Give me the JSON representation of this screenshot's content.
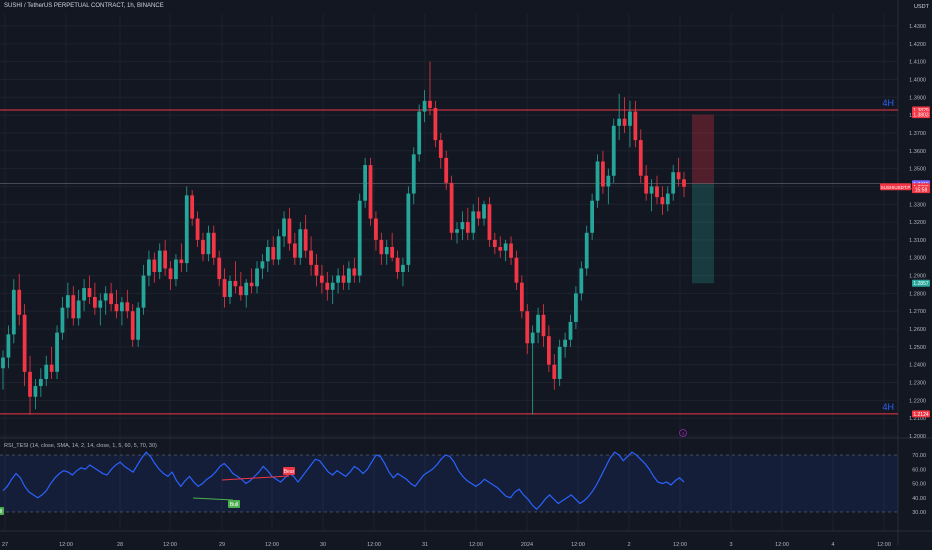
{
  "header": {
    "symbol_title": "SUSHI / TetherUS PERPETUAL CONTRACT, 1h, BINANCE",
    "currency": "USDT"
  },
  "colors": {
    "bg": "#131722",
    "up": "#26a69a",
    "down": "#f23645",
    "level": "#f23645",
    "rsi": "#2962ff",
    "accent": "#2962ff"
  },
  "chart_data": [
    {
      "type": "candlestick",
      "title": "SUSHI / TetherUS PERPETUAL CONTRACT, 1h, BINANCE",
      "ylim": [
        1.2,
        1.44
      ],
      "y_ticks": [
        "1.4300",
        "1.4200",
        "1.4100",
        "1.4000",
        "1.3900",
        "1.3800",
        "1.3700",
        "1.3600",
        "1.3500",
        "1.3400",
        "1.3300",
        "1.3200",
        "1.3100",
        "1.3000",
        "1.2900",
        "1.2800",
        "1.2700",
        "1.2600",
        "1.2500",
        "1.2400",
        "1.2300",
        "1.2200",
        "1.2100",
        "1.2000"
      ],
      "x_ticks": [
        "27",
        "12:00",
        "28",
        "12:00",
        "29",
        "12:00",
        "30",
        "12:00",
        "31",
        "12:00",
        "2024",
        "12:00",
        "2",
        "12:00",
        "3",
        "12:00",
        "4",
        "12:00"
      ],
      "ohlc": [
        [
          1.238,
          1.248,
          1.226,
          1.244
        ],
        [
          1.244,
          1.262,
          1.238,
          1.257
        ],
        [
          1.257,
          1.288,
          1.252,
          1.282
        ],
        [
          1.282,
          1.291,
          1.262,
          1.268
        ],
        [
          1.268,
          1.274,
          1.228,
          1.236
        ],
        [
          1.236,
          1.245,
          1.212,
          1.222
        ],
        [
          1.222,
          1.232,
          1.215,
          1.228
        ],
        [
          1.228,
          1.238,
          1.222,
          1.232
        ],
        [
          1.232,
          1.245,
          1.228,
          1.24
        ],
        [
          1.24,
          1.25,
          1.232,
          1.236
        ],
        [
          1.236,
          1.262,
          1.232,
          1.258
        ],
        [
          1.258,
          1.278,
          1.254,
          1.272
        ],
        [
          1.272,
          1.286,
          1.266,
          1.279
        ],
        [
          1.279,
          1.284,
          1.262,
          1.266
        ],
        [
          1.266,
          1.282,
          1.262,
          1.276
        ],
        [
          1.276,
          1.288,
          1.27,
          1.283
        ],
        [
          1.283,
          1.29,
          1.274,
          1.278
        ],
        [
          1.278,
          1.286,
          1.268,
          1.272
        ],
        [
          1.272,
          1.28,
          1.262,
          1.276
        ],
        [
          1.276,
          1.284,
          1.268,
          1.28
        ],
        [
          1.28,
          1.286,
          1.27,
          1.274
        ],
        [
          1.274,
          1.282,
          1.266,
          1.27
        ],
        [
          1.27,
          1.278,
          1.262,
          1.275
        ],
        [
          1.275,
          1.282,
          1.266,
          1.27
        ],
        [
          1.27,
          1.274,
          1.25,
          1.254
        ],
        [
          1.254,
          1.275,
          1.25,
          1.272
        ],
        [
          1.272,
          1.296,
          1.268,
          1.29
        ],
        [
          1.29,
          1.304,
          1.284,
          1.299
        ],
        [
          1.299,
          1.303,
          1.286,
          1.292
        ],
        [
          1.292,
          1.308,
          1.288,
          1.304
        ],
        [
          1.304,
          1.31,
          1.29,
          1.294
        ],
        [
          1.294,
          1.298,
          1.282,
          1.288
        ],
        [
          1.288,
          1.302,
          1.284,
          1.299
        ],
        [
          1.299,
          1.308,
          1.292,
          1.297
        ],
        [
          1.297,
          1.34,
          1.292,
          1.335
        ],
        [
          1.335,
          1.338,
          1.318,
          1.322
        ],
        [
          1.322,
          1.326,
          1.306,
          1.31
        ],
        [
          1.31,
          1.314,
          1.298,
          1.302
        ],
        [
          1.302,
          1.318,
          1.298,
          1.314
        ],
        [
          1.314,
          1.318,
          1.296,
          1.3
        ],
        [
          1.3,
          1.304,
          1.284,
          1.288
        ],
        [
          1.288,
          1.294,
          1.272,
          1.278
        ],
        [
          1.278,
          1.29,
          1.274,
          1.287
        ],
        [
          1.287,
          1.298,
          1.28,
          1.284
        ],
        [
          1.284,
          1.292,
          1.276,
          1.279
        ],
        [
          1.279,
          1.288,
          1.272,
          1.286
        ],
        [
          1.286,
          1.294,
          1.28,
          1.284
        ],
        [
          1.284,
          1.298,
          1.28,
          1.294
        ],
        [
          1.294,
          1.302,
          1.288,
          1.298
        ],
        [
          1.298,
          1.31,
          1.292,
          1.306
        ],
        [
          1.306,
          1.312,
          1.296,
          1.299
        ],
        [
          1.299,
          1.316,
          1.296,
          1.312
        ],
        [
          1.312,
          1.326,
          1.306,
          1.322
        ],
        [
          1.322,
          1.328,
          1.304,
          1.308
        ],
        [
          1.308,
          1.314,
          1.296,
          1.3
        ],
        [
          1.3,
          1.32,
          1.296,
          1.316
        ],
        [
          1.316,
          1.324,
          1.3,
          1.304
        ],
        [
          1.304,
          1.312,
          1.29,
          1.296
        ],
        [
          1.296,
          1.302,
          1.284,
          1.29
        ],
        [
          1.29,
          1.296,
          1.28,
          1.286
        ],
        [
          1.286,
          1.292,
          1.276,
          1.282
        ],
        [
          1.282,
          1.29,
          1.274,
          1.286
        ],
        [
          1.286,
          1.294,
          1.28,
          1.29
        ],
        [
          1.29,
          1.296,
          1.282,
          1.286
        ],
        [
          1.286,
          1.298,
          1.282,
          1.294
        ],
        [
          1.294,
          1.3,
          1.286,
          1.29
        ],
        [
          1.29,
          1.336,
          1.286,
          1.332
        ],
        [
          1.332,
          1.356,
          1.328,
          1.352
        ],
        [
          1.352,
          1.356,
          1.318,
          1.322
        ],
        [
          1.322,
          1.326,
          1.304,
          1.31
        ],
        [
          1.31,
          1.314,
          1.296,
          1.302
        ],
        [
          1.302,
          1.31,
          1.296,
          1.306
        ],
        [
          1.306,
          1.314,
          1.298,
          1.3
        ],
        [
          1.3,
          1.304,
          1.288,
          1.292
        ],
        [
          1.292,
          1.3,
          1.284,
          1.296
        ],
        [
          1.296,
          1.34,
          1.292,
          1.336
        ],
        [
          1.336,
          1.362,
          1.33,
          1.358
        ],
        [
          1.358,
          1.386,
          1.354,
          1.382
        ],
        [
          1.382,
          1.394,
          1.376,
          1.388
        ],
        [
          1.388,
          1.41,
          1.38,
          1.384
        ],
        [
          1.384,
          1.388,
          1.362,
          1.366
        ],
        [
          1.366,
          1.37,
          1.35,
          1.356
        ],
        [
          1.356,
          1.36,
          1.338,
          1.342
        ],
        [
          1.342,
          1.346,
          1.31,
          1.314
        ],
        [
          1.314,
          1.32,
          1.308,
          1.316
        ],
        [
          1.316,
          1.326,
          1.31,
          1.32
        ],
        [
          1.32,
          1.328,
          1.31,
          1.314
        ],
        [
          1.314,
          1.33,
          1.31,
          1.326
        ],
        [
          1.326,
          1.334,
          1.318,
          1.322
        ],
        [
          1.322,
          1.332,
          1.318,
          1.33
        ],
        [
          1.33,
          1.334,
          1.306,
          1.31
        ],
        [
          1.31,
          1.314,
          1.302,
          1.306
        ],
        [
          1.306,
          1.312,
          1.3,
          1.304
        ],
        [
          1.304,
          1.31,
          1.298,
          1.308
        ],
        [
          1.308,
          1.312,
          1.296,
          1.3
        ],
        [
          1.3,
          1.304,
          1.282,
          1.286
        ],
        [
          1.286,
          1.29,
          1.266,
          1.27
        ],
        [
          1.27,
          1.274,
          1.246,
          1.252
        ],
        [
          1.252,
          1.262,
          1.212,
          1.258
        ],
        [
          1.258,
          1.272,
          1.252,
          1.268
        ],
        [
          1.268,
          1.274,
          1.25,
          1.256
        ],
        [
          1.256,
          1.262,
          1.236,
          1.24
        ],
        [
          1.24,
          1.246,
          1.226,
          1.232
        ],
        [
          1.232,
          1.254,
          1.228,
          1.25
        ],
        [
          1.25,
          1.258,
          1.244,
          1.254
        ],
        [
          1.254,
          1.268,
          1.25,
          1.264
        ],
        [
          1.264,
          1.284,
          1.26,
          1.28
        ],
        [
          1.28,
          1.298,
          1.276,
          1.294
        ],
        [
          1.294,
          1.318,
          1.29,
          1.314
        ],
        [
          1.314,
          1.336,
          1.31,
          1.332
        ],
        [
          1.332,
          1.358,
          1.328,
          1.354
        ],
        [
          1.354,
          1.36,
          1.336,
          1.34
        ],
        [
          1.34,
          1.35,
          1.33,
          1.346
        ],
        [
          1.346,
          1.378,
          1.342,
          1.374
        ],
        [
          1.374,
          1.392,
          1.366,
          1.378
        ],
        [
          1.378,
          1.39,
          1.37,
          1.374
        ],
        [
          1.374,
          1.388,
          1.362,
          1.382
        ],
        [
          1.382,
          1.388,
          1.362,
          1.366
        ],
        [
          1.366,
          1.372,
          1.342,
          1.346
        ],
        [
          1.346,
          1.352,
          1.332,
          1.336
        ],
        [
          1.336,
          1.344,
          1.326,
          1.34
        ],
        [
          1.34,
          1.346,
          1.33,
          1.334
        ],
        [
          1.334,
          1.34,
          1.324,
          1.33
        ],
        [
          1.33,
          1.34,
          1.326,
          1.336
        ],
        [
          1.336,
          1.352,
          1.332,
          1.348
        ],
        [
          1.348,
          1.356,
          1.34,
          1.344
        ],
        [
          1.344,
          1.348,
          1.334,
          1.3398
        ]
      ],
      "levels": [
        {
          "label": "4H",
          "price": 1.3829,
          "color": "#f23645"
        },
        {
          "label": "4H",
          "price": 1.2124,
          "color": "#f23645"
        }
      ],
      "price_labels": [
        {
          "text": "1.3829",
          "price": 1.3829,
          "color": "#f23645"
        },
        {
          "text": "1.3803",
          "price": 1.3803,
          "color": "#f23645"
        },
        {
          "text": "1.3415",
          "price": 1.3415,
          "color": "#7b61ff"
        },
        {
          "text": "1.3398",
          "price": 1.3398,
          "color": "#f23645"
        },
        {
          "text": "15:58",
          "price": 1.3382,
          "color": "#f23645"
        },
        {
          "text": "1.2857",
          "price": 1.2857,
          "color": "#26a69a"
        },
        {
          "text": "1.2124",
          "price": 1.2124,
          "color": "#f23645"
        }
      ],
      "symbol_tag": {
        "text": "SUSHIUSDT.P",
        "price": 1.3398
      },
      "position_box": {
        "entry": 1.3415,
        "stop": 1.3803,
        "target": 1.2857
      },
      "events": [
        {
          "label": "4",
          "price": 1.1995
        }
      ]
    },
    {
      "type": "line",
      "title": "RSI_TESI (14, close, SMA, 14, 2, 14, close, 1, 5, 60, 5, 70, 30)",
      "ylim": [
        28,
        76
      ],
      "y_ticks": [
        "70.00",
        "60.00",
        "50.00",
        "40.00",
        "30.00"
      ],
      "series": [
        {
          "name": "",
          "values": [
            45,
            48,
            53,
            57,
            54,
            48,
            44,
            42,
            40,
            42,
            45,
            50,
            54,
            57,
            59,
            58,
            56,
            59,
            61,
            60,
            63,
            61,
            59,
            57,
            56,
            60,
            63,
            65,
            62,
            60,
            58,
            63,
            68,
            72,
            69,
            64,
            60,
            57,
            55,
            58,
            52,
            48,
            52,
            55,
            51,
            48,
            50,
            53,
            55,
            58,
            62,
            64,
            61,
            57,
            55,
            53,
            50,
            52,
            55,
            58,
            62,
            59,
            55,
            53,
            51,
            54,
            57,
            55,
            51,
            55,
            59,
            63,
            67,
            66,
            62,
            58,
            56,
            59,
            57,
            55,
            58,
            62,
            60,
            57,
            60,
            65,
            70,
            69,
            64,
            58,
            54,
            57,
            55,
            53,
            50,
            48,
            52,
            56,
            58,
            60,
            63,
            67,
            70,
            69,
            65,
            59,
            55,
            52,
            50,
            48,
            50,
            53,
            51,
            49,
            47,
            44,
            41,
            40,
            44,
            46,
            42,
            39,
            35,
            32,
            35,
            39,
            42,
            39,
            36,
            38,
            40,
            42,
            39,
            36,
            38,
            41,
            45,
            50,
            56,
            62,
            68,
            72,
            70,
            66,
            69,
            72,
            70,
            67,
            64,
            60,
            55,
            51,
            50,
            51,
            49,
            52,
            54,
            51
          ]
        }
      ],
      "thresholds": [
        70,
        30
      ],
      "annotations": [
        {
          "text": "Bear",
          "color": "#f23645"
        },
        {
          "text": "Bull",
          "color": "#4caf50"
        },
        {
          "text": "Bull",
          "color": "#4caf50"
        }
      ]
    }
  ]
}
